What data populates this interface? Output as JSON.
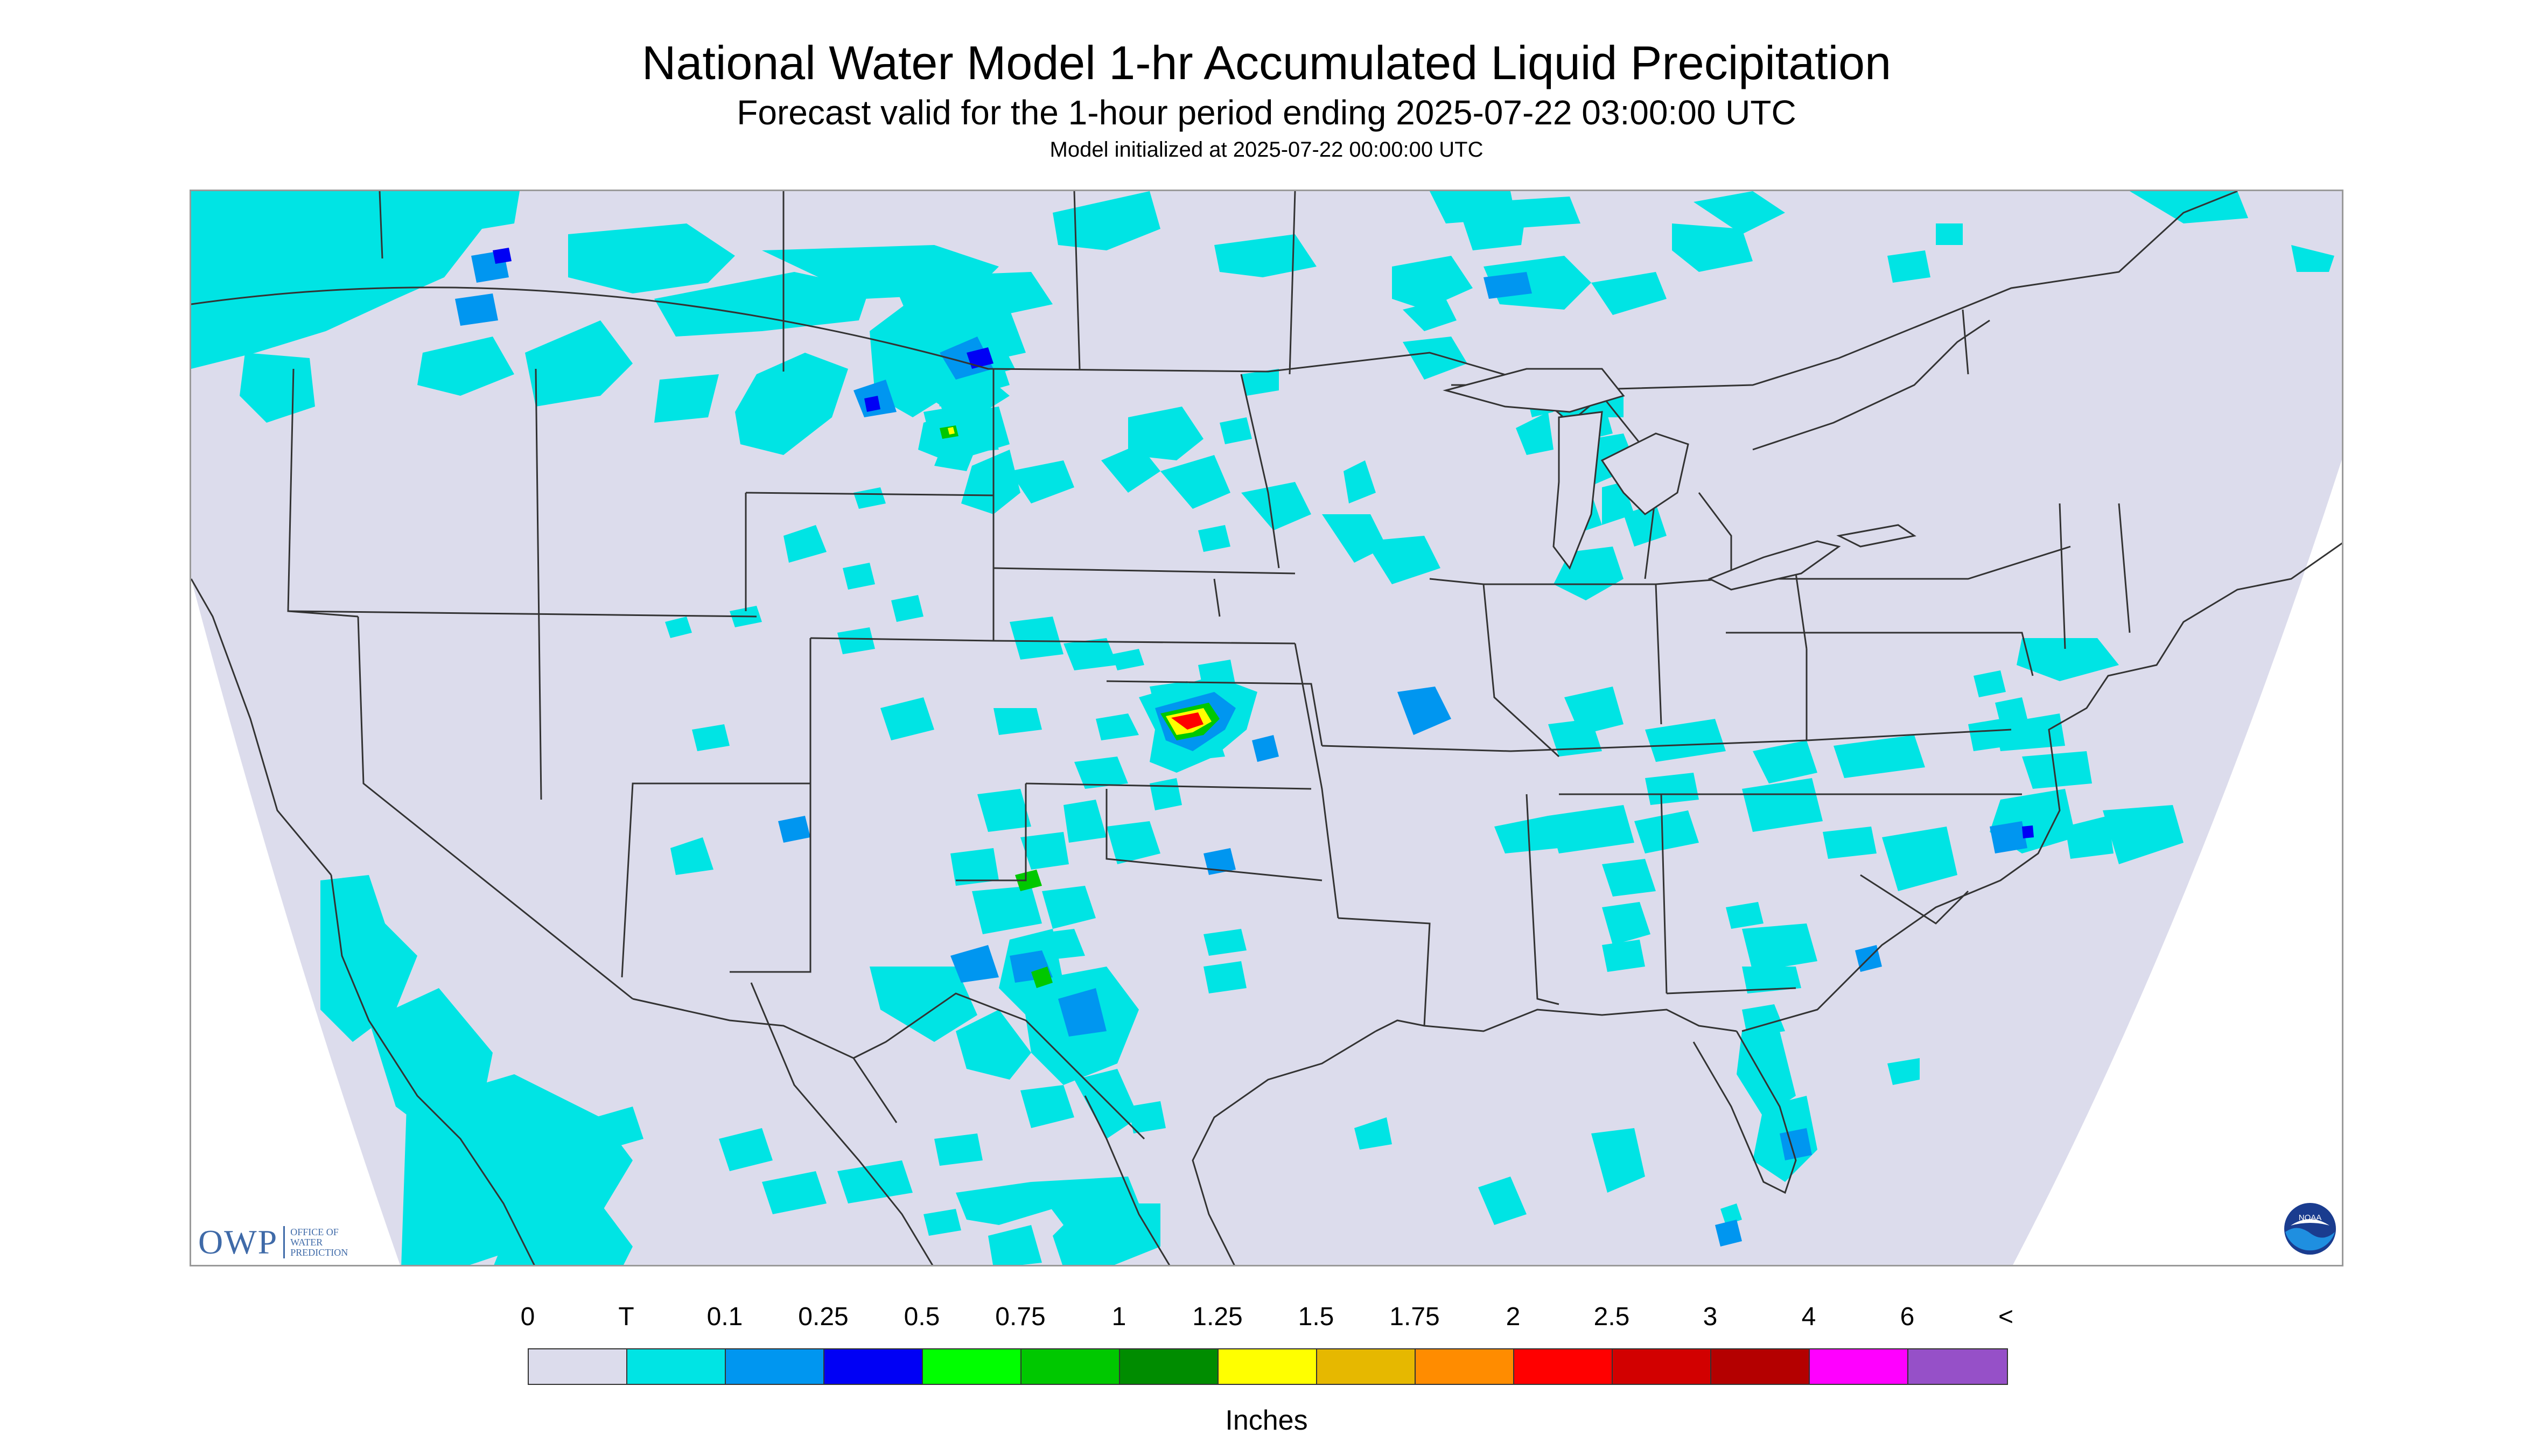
{
  "title": "National Water Model 1-hr Accumulated Liquid Precipitation",
  "subtitle": "Forecast valid for the 1-hour period ending 2025-07-22 03:00:00 UTC",
  "init_line": "Model initialized at 2025-07-22 00:00:00 UTC",
  "logos": {
    "owp_mark": "OWP",
    "owp_name": "OFFICE OF WATER PREDICTION",
    "noaa_text": "NOAA"
  },
  "legend": {
    "units": "Inches",
    "labels": [
      "0",
      "T",
      "0.1",
      "0.25",
      "0.5",
      "0.75",
      "1",
      "1.25",
      "1.5",
      "1.75",
      "2",
      "2.5",
      "3",
      "4",
      "6",
      "<"
    ],
    "colors": [
      "#dcdcec",
      "#00e4e4",
      "#0096f0",
      "#0000f5",
      "#00ff00",
      "#00c800",
      "#008c00",
      "#ffff00",
      "#e6b800",
      "#ff8c00",
      "#ff0000",
      "#d20000",
      "#b40000",
      "#ff00ff",
      "#9650c8"
    ]
  },
  "map": {
    "background_color": "#dcdcec",
    "boundary_color": "#333333",
    "precip_colors": {
      "trace": "#00e4e4",
      "light": "#0096f0",
      "moderate": "#0000f5",
      "green": "#00c800",
      "yellow": "#ffff00",
      "red": "#ff0000"
    }
  }
}
